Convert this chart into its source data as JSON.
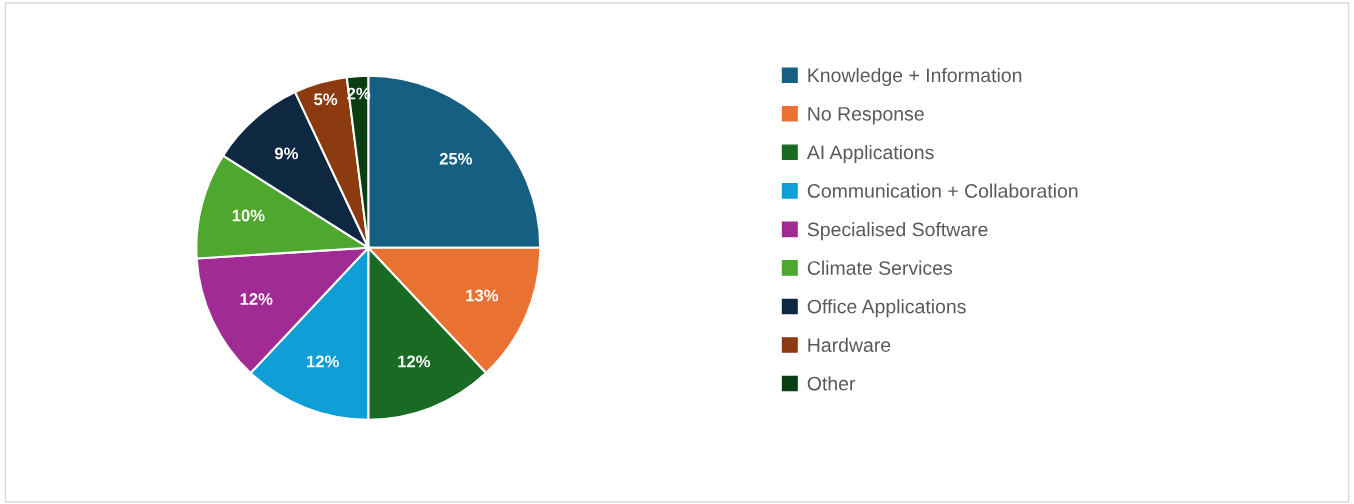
{
  "chart_data": {
    "type": "pie",
    "categories": [
      "Knowledge + Information",
      "No Response",
      "AI Applications",
      "Communication + Collaboration",
      "Specialised Software",
      "Climate Services",
      "Office Applications",
      "Hardware",
      "Other"
    ],
    "values": [
      25,
      13,
      12,
      12,
      12,
      10,
      9,
      5,
      2
    ],
    "colors": [
      "#156082",
      "#e97132",
      "#196b24",
      "#0f9ed5",
      "#a02b93",
      "#4ea72e",
      "#0e2841",
      "#8c3a0f",
      "#0b3d13"
    ],
    "value_labels": [
      "25%",
      "13%",
      "12%",
      "12%",
      "12%",
      "10%",
      "9%",
      "5%",
      "2%"
    ],
    "legend": "right"
  }
}
